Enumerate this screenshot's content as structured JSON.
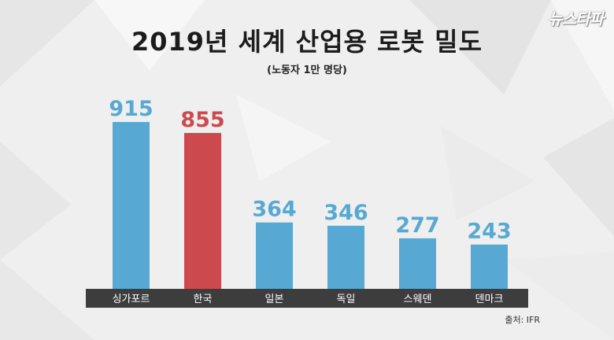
{
  "header": {
    "title": "2019년 세계 산업용 로봇 밀도",
    "subtitle": "(노동자 1만 명당)",
    "logo": "뉴스타파",
    "source": "출처: IFR"
  },
  "colors": {
    "default_bar": "#57a9d3",
    "highlight_bar": "#cc4a4e",
    "axis_band": "#3d3d3d"
  },
  "chart_data": {
    "type": "bar",
    "title": "2019년 세계 산업용 로봇 밀도",
    "subtitle": "(노동자 1만 명당)",
    "categories": [
      "싱가포르",
      "한국",
      "일본",
      "독일",
      "스웨덴",
      "덴마크"
    ],
    "values": [
      915,
      855,
      364,
      346,
      277,
      243
    ],
    "highlight": "한국",
    "xlabel": "",
    "ylabel": "",
    "ylim": [
      0,
      915
    ],
    "grid": false,
    "data_labels": true
  }
}
